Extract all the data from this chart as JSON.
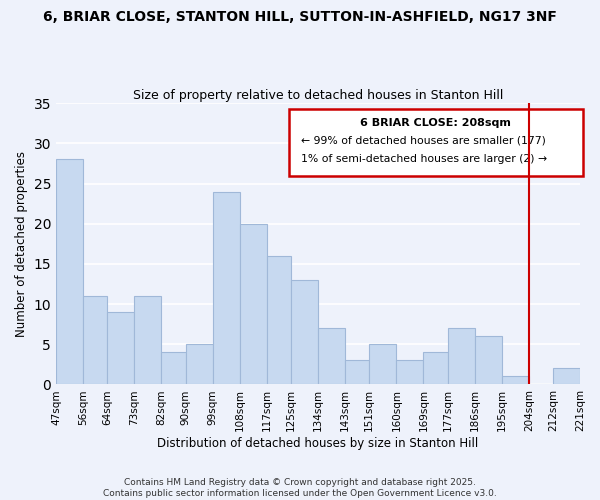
{
  "title_line1": "6, BRIAR CLOSE, STANTON HILL, SUTTON-IN-ASHFIELD, NG17 3NF",
  "title_line2": "Size of property relative to detached houses in Stanton Hill",
  "xlabel": "Distribution of detached houses by size in Stanton Hill",
  "ylabel": "Number of detached properties",
  "bar_labels": [
    "47sqm",
    "56sqm",
    "64sqm",
    "73sqm",
    "82sqm",
    "90sqm",
    "99sqm",
    "108sqm",
    "117sqm",
    "125sqm",
    "134sqm",
    "143sqm",
    "151sqm",
    "160sqm",
    "169sqm",
    "177sqm",
    "186sqm",
    "195sqm",
    "204sqm",
    "212sqm",
    "221sqm"
  ],
  "bar_values": [
    28,
    11,
    9,
    11,
    4,
    5,
    24,
    20,
    16,
    13,
    7,
    3,
    5,
    3,
    4,
    7,
    6,
    1,
    0,
    2,
    0
  ],
  "bar_color": "#c7d9f0",
  "bar_edgecolor": "#a0b8d8",
  "bg_color": "#eef2fb",
  "grid_color": "#ffffff",
  "ylim": [
    0,
    35
  ],
  "yticks": [
    0,
    5,
    10,
    15,
    20,
    25,
    30,
    35
  ],
  "property_line_color": "#cc0000",
  "legend_title": "6 BRIAR CLOSE: 208sqm",
  "legend_line1": "← 99% of detached houses are smaller (177)",
  "legend_line2": "1% of semi-detached houses are larger (2) →",
  "bin_edges": [
    47,
    56,
    64,
    73,
    82,
    90,
    99,
    108,
    117,
    125,
    134,
    143,
    151,
    160,
    169,
    177,
    186,
    195,
    204,
    212,
    221
  ],
  "footer_line1": "Contains HM Land Registry data © Crown copyright and database right 2025.",
  "footer_line2": "Contains public sector information licensed under the Open Government Licence v3.0."
}
